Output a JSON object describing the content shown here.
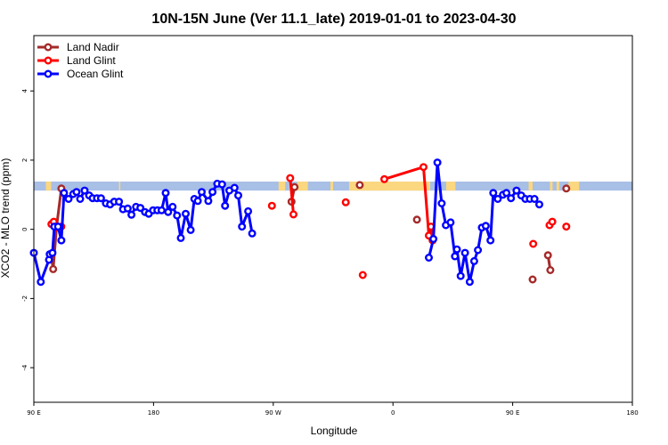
{
  "chart_data": {
    "type": "line",
    "title": "10N-15N June (Ver 11.1_late)   2019-01-01 to 2023-04-30",
    "xlabel": "Longitude",
    "ylabel": "XCO2 - MLO trend (ppm)",
    "x_axis": {
      "range": [
        90,
        450
      ],
      "ticks": [
        {
          "value": 90,
          "label": "90 E"
        },
        {
          "value": 180,
          "label": "180"
        },
        {
          "value": 270,
          "label": "90 W"
        },
        {
          "value": 360,
          "label": "0"
        },
        {
          "value": 450,
          "label": "90 E"
        },
        {
          "value": 540,
          "label": "180"
        }
      ],
      "range_full": [
        90,
        540
      ]
    },
    "y_axis": {
      "range": [
        -5.0,
        5.6
      ],
      "ticks": [
        -4,
        -2,
        0,
        2,
        4
      ]
    },
    "legend": {
      "placement": "top-left",
      "entries": [
        {
          "name": "Land Nadir",
          "color": "#a52a2a"
        },
        {
          "name": "Land Glint",
          "color": "#ff0000"
        },
        {
          "name": "Ocean Glint",
          "color": "#0000ff"
        }
      ]
    },
    "grid": false,
    "band": {
      "y_range": [
        1.12,
        1.38
      ],
      "colors": {
        "ocean": "#a8bfe6",
        "land": "#fbd77f"
      },
      "land_segments": [
        [
          99,
          103
        ],
        [
          154,
          155
        ],
        [
          282,
          284
        ],
        [
          274,
          279
        ],
        [
          288,
          296
        ],
        [
          313,
          315
        ],
        [
          327,
          388
        ],
        [
          400,
          407
        ],
        [
          462,
          465
        ],
        [
          478,
          480
        ],
        [
          483,
          485
        ],
        [
          492,
          500
        ]
      ]
    },
    "series": [
      {
        "name": "Land Nadir",
        "color": "#a52a2a",
        "segments": [
          [
            [
              103,
              -0.75
            ],
            [
              104.5,
              -1.15
            ],
            [
              107,
              0.05
            ],
            [
              110.7,
              1.18
            ]
          ],
          [
            [
              283.7,
              0.8
            ],
            [
              286,
              1.22
            ]
          ],
          [
            [
              335,
              1.28
            ]
          ],
          [
            [
              378,
              0.28
            ]
          ],
          [
            [
              465,
              -1.45
            ]
          ],
          [
            [
              476.5,
              -0.75
            ],
            [
              478.3,
              -1.18
            ]
          ],
          [
            [
              490.3,
              1.18
            ]
          ]
        ]
      },
      {
        "name": "Land Glint",
        "color": "#ff0000",
        "segments": [
          [
            [
              103.2,
              0.15
            ],
            [
              105,
              0.22
            ],
            [
              107,
              0.05
            ],
            [
              110.6,
              0.08
            ]
          ],
          [
            [
              269,
              0.68
            ]
          ],
          [
            [
              282.7,
              1.48
            ],
            [
              285.2,
              0.43
            ]
          ],
          [
            [
              337.3,
              -1.32
            ]
          ],
          [
            [
              353.5,
              1.45
            ],
            [
              383,
              1.8
            ],
            [
              387,
              -0.18
            ],
            [
              388.6,
              0.08
            ],
            [
              389.8,
              -0.32
            ]
          ],
          [
            [
              324.5,
              0.78
            ]
          ],
          [
            [
              465.5,
              -0.42
            ]
          ],
          [
            [
              477.7,
              0.12
            ],
            [
              479.8,
              0.22
            ]
          ],
          [
            [
              490.3,
              0.08
            ]
          ]
        ]
      },
      {
        "name": "Ocean Glint",
        "color": "#0000ff",
        "segments": [
          [
            [
              90,
              -0.68
            ],
            [
              95.2,
              -1.52
            ],
            [
              101.4,
              -0.88
            ],
            [
              101.9,
              -0.72
            ],
            [
              104,
              -0.68
            ],
            [
              105.4,
              0.08
            ],
            [
              108.2,
              0.08
            ],
            [
              110.7,
              -0.32
            ],
            [
              112.7,
              1.05
            ],
            [
              116.1,
              0.88
            ],
            [
              119.6,
              1.02
            ],
            [
              122.1,
              1.08
            ],
            [
              124.8,
              0.88
            ],
            [
              128.2,
              1.12
            ],
            [
              131.6,
              0.98
            ],
            [
              134.2,
              0.9
            ],
            [
              137.5,
              0.9
            ],
            [
              140.5,
              0.9
            ],
            [
              144.2,
              0.75
            ],
            [
              147.3,
              0.72
            ],
            [
              150.5,
              0.8
            ],
            [
              154,
              0.8
            ],
            [
              157,
              0.58
            ],
            [
              160.6,
              0.6
            ],
            [
              163.4,
              0.42
            ],
            [
              166.8,
              0.65
            ],
            [
              170.1,
              0.62
            ],
            [
              173.6,
              0.5
            ],
            [
              176.4,
              0.45
            ],
            [
              179.6,
              0.55
            ],
            [
              182.9,
              0.55
            ],
            [
              186,
              0.55
            ],
            [
              189.1,
              1.05
            ],
            [
              191,
              0.5
            ],
            [
              194.3,
              0.65
            ],
            [
              197.7,
              0.4
            ],
            [
              200.5,
              -0.25
            ],
            [
              204.2,
              0.45
            ],
            [
              207.9,
              -0.02
            ],
            [
              210.7,
              0.88
            ],
            [
              213.3,
              0.82
            ],
            [
              216.2,
              1.08
            ],
            [
              221.2,
              0.82
            ],
            [
              224.3,
              1.08
            ],
            [
              227.9,
              1.32
            ],
            [
              231.5,
              1.3
            ],
            [
              233.8,
              0.68
            ],
            [
              237,
              1.12
            ],
            [
              240.9,
              1.2
            ],
            [
              243.7,
              0.98
            ],
            [
              246.5,
              0.08
            ],
            [
              251.1,
              0.52
            ],
            [
              254.1,
              -0.12
            ]
          ]
        ]
      },
      {
        "name": "Ocean Glint",
        "color": "#0000ff",
        "segments": [
          [
            [
              387,
              -0.82
            ],
            [
              390.4,
              -0.28
            ],
            [
              393.4,
              1.93
            ],
            [
              396.6,
              0.75
            ],
            [
              399.8,
              0.12
            ],
            [
              403.3,
              0.2
            ],
            [
              406.6,
              -0.78
            ],
            [
              408.1,
              -0.58
            ],
            [
              410.9,
              -1.35
            ],
            [
              414.2,
              -0.68
            ],
            [
              417.7,
              -1.52
            ],
            [
              421.1,
              -0.92
            ],
            [
              423.9,
              -0.6
            ],
            [
              426.8,
              0.05
            ],
            [
              429.8,
              0.1
            ],
            [
              433.3,
              -0.32
            ],
            [
              435.4,
              1.05
            ],
            [
              438.8,
              0.88
            ],
            [
              442.7,
              1.0
            ],
            [
              445.3,
              1.05
            ],
            [
              448.7,
              0.9
            ],
            [
              452.9,
              1.12
            ],
            [
              456.4,
              0.98
            ],
            [
              459.5,
              0.88
            ],
            [
              462.9,
              0.88
            ],
            [
              466.4,
              0.88
            ],
            [
              470,
              0.72
            ]
          ]
        ]
      }
    ]
  }
}
